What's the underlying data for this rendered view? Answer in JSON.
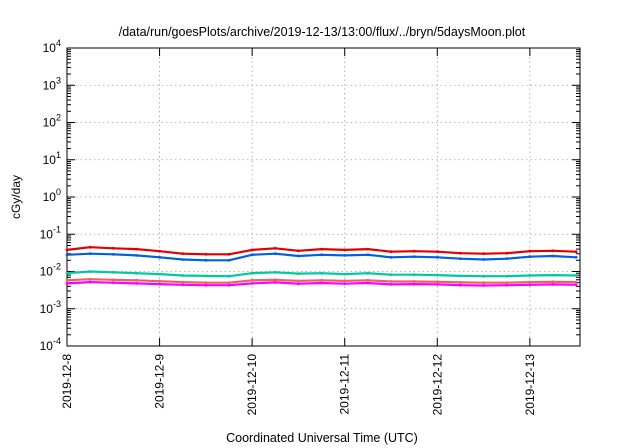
{
  "chart_data": {
    "type": "line",
    "title": "/data/run/goesPlots/archive/2019-12-13/13:00/flux/../bryn/5daysMoon.plot",
    "xlabel": "Coordinated Universal Time (UTC)",
    "ylabel": "cGy/day",
    "yscale": "log",
    "ylim": [
      0.0001,
      10000
    ],
    "xlim": [
      "2019-12-08",
      "2019-12-13 13:00"
    ],
    "grid": true,
    "x_ticks": [
      "2019-12-8",
      "2019-12-9",
      "2019-12-10",
      "2019-12-11",
      "2019-12-12",
      "2019-12-13"
    ],
    "y_ticks": [
      {
        "base": "10",
        "exp": "4"
      },
      {
        "base": "10",
        "exp": "3"
      },
      {
        "base": "10",
        "exp": "2"
      },
      {
        "base": "10",
        "exp": "1"
      },
      {
        "base": "10",
        "exp": "0"
      },
      {
        "base": "10",
        "exp": "-1"
      },
      {
        "base": "10",
        "exp": "-2"
      },
      {
        "base": "10",
        "exp": "-3"
      },
      {
        "base": "10",
        "exp": "-4"
      }
    ],
    "x": [
      "2019-12-08 00:00",
      "2019-12-08 06:00",
      "2019-12-08 12:00",
      "2019-12-08 18:00",
      "2019-12-09 00:00",
      "2019-12-09 06:00",
      "2019-12-09 12:00",
      "2019-12-09 18:00",
      "2019-12-10 00:00",
      "2019-12-10 06:00",
      "2019-12-10 12:00",
      "2019-12-10 18:00",
      "2019-12-11 00:00",
      "2019-12-11 06:00",
      "2019-12-11 12:00",
      "2019-12-11 18:00",
      "2019-12-12 00:00",
      "2019-12-12 06:00",
      "2019-12-12 12:00",
      "2019-12-12 18:00",
      "2019-12-13 00:00",
      "2019-12-13 06:00",
      "2019-12-13 12:00"
    ],
    "series": [
      {
        "color": "#e00000",
        "values": [
          0.038,
          0.045,
          0.042,
          0.04,
          0.035,
          0.03,
          0.029,
          0.029,
          0.038,
          0.042,
          0.036,
          0.04,
          0.038,
          0.04,
          0.034,
          0.035,
          0.034,
          0.031,
          0.03,
          0.031,
          0.035,
          0.036,
          0.034
        ]
      },
      {
        "color": "#0060e0",
        "values": [
          0.028,
          0.03,
          0.029,
          0.027,
          0.024,
          0.021,
          0.02,
          0.02,
          0.028,
          0.03,
          0.026,
          0.028,
          0.027,
          0.028,
          0.024,
          0.025,
          0.024,
          0.022,
          0.021,
          0.022,
          0.025,
          0.026,
          0.024
        ]
      },
      {
        "color": "#00c8a0",
        "values": [
          0.009,
          0.01,
          0.0095,
          0.009,
          0.0085,
          0.0078,
          0.0076,
          0.0075,
          0.009,
          0.0095,
          0.0088,
          0.009,
          0.0085,
          0.009,
          0.0082,
          0.0082,
          0.008,
          0.0076,
          0.0075,
          0.0075,
          0.0078,
          0.008,
          0.0078
        ]
      },
      {
        "color": "#f06060",
        "values": [
          0.0058,
          0.0062,
          0.006,
          0.0058,
          0.0055,
          0.0052,
          0.005,
          0.005,
          0.0058,
          0.006,
          0.0056,
          0.0058,
          0.0056,
          0.0058,
          0.0054,
          0.0054,
          0.0053,
          0.0051,
          0.005,
          0.005,
          0.0052,
          0.0053,
          0.0052
        ]
      },
      {
        "color": "#ff00ff",
        "values": [
          0.0048,
          0.0052,
          0.005,
          0.0048,
          0.0046,
          0.0044,
          0.0043,
          0.0043,
          0.0048,
          0.0051,
          0.0047,
          0.0049,
          0.0047,
          0.0049,
          0.0045,
          0.0046,
          0.0045,
          0.0043,
          0.0042,
          0.0043,
          0.0044,
          0.0045,
          0.0044
        ]
      }
    ]
  }
}
